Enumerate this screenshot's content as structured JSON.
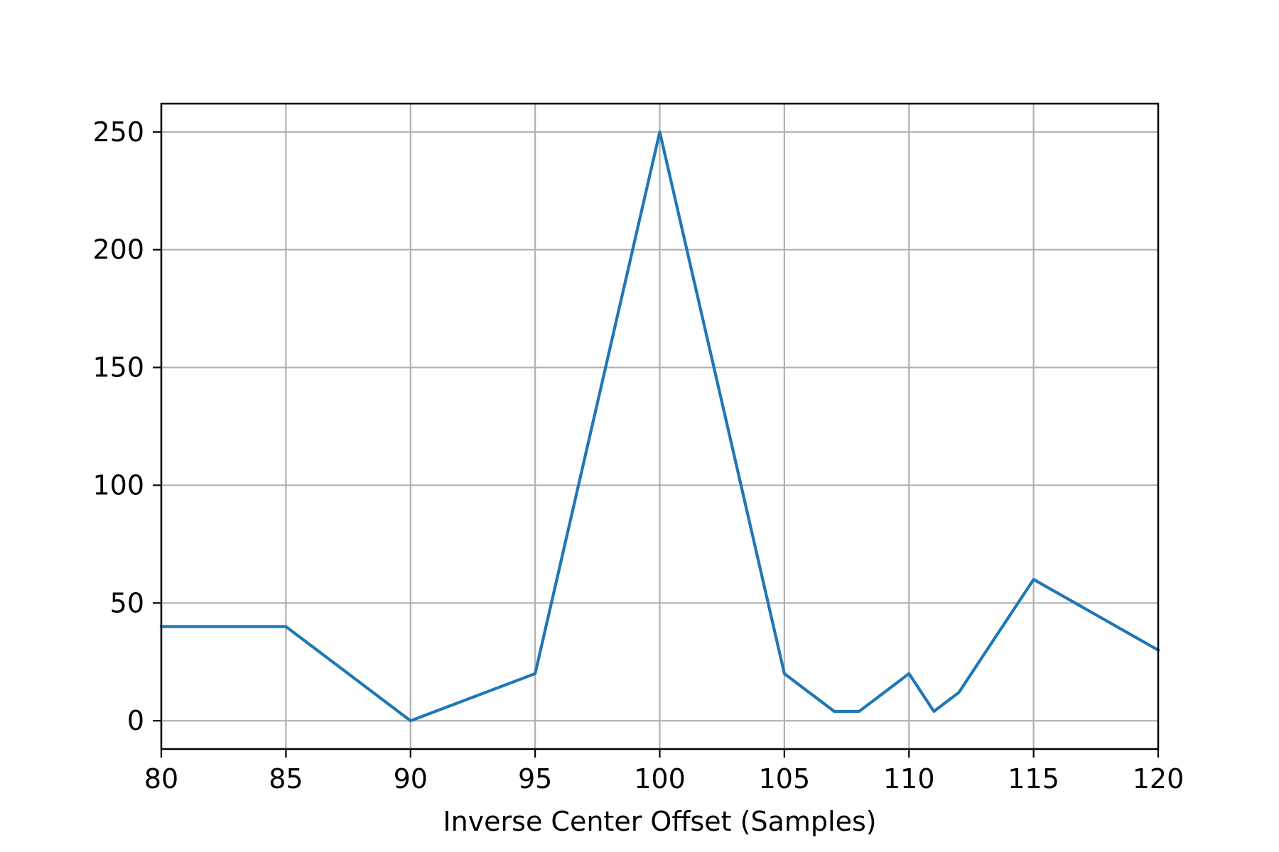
{
  "chart_data": {
    "type": "line",
    "title": "",
    "xlabel": "Inverse Center Offset (Samples)",
    "ylabel": "",
    "xlim": [
      80,
      120
    ],
    "ylim": [
      -12,
      262
    ],
    "x_ticks": [
      80,
      85,
      90,
      95,
      100,
      105,
      110,
      115,
      120
    ],
    "y_ticks": [
      0,
      50,
      100,
      150,
      200,
      250
    ],
    "grid": true,
    "legend": "none",
    "series": [
      {
        "color": "#1f77b4",
        "x": [
          80,
          85,
          90,
          95,
          100,
          105,
          107,
          108,
          110,
          111,
          112,
          115,
          120
        ],
        "y": [
          40,
          40,
          0,
          20,
          250,
          20,
          4,
          4,
          20,
          4,
          12,
          60,
          30
        ]
      }
    ]
  }
}
